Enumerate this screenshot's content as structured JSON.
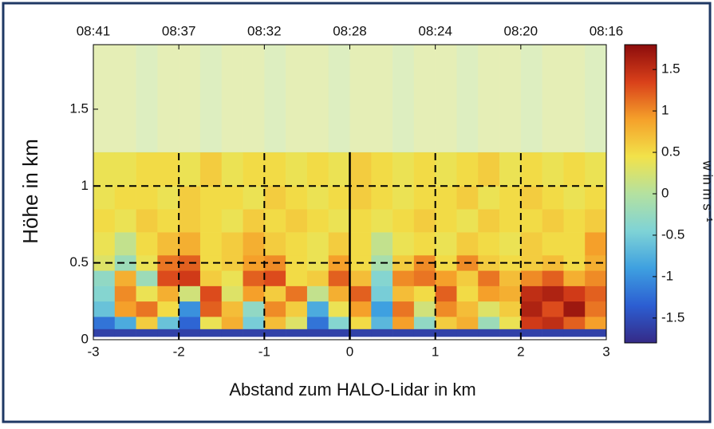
{
  "chart_data": {
    "type": "heatmap",
    "xlabel": "Abstand zum HALO-Lidar in km",
    "ylabel": "Höhe in km",
    "colorbar_label": "w in m s⁻¹",
    "xlim": [
      -3,
      3
    ],
    "xticks": [
      -3,
      -2,
      -1,
      0,
      1,
      2,
      3
    ],
    "ylim": [
      0,
      1.92
    ],
    "yticks": [
      0,
      0.5,
      1,
      1.5
    ],
    "x2ticks": [
      {
        "value": -3,
        "label": "08:41"
      },
      {
        "value": -2,
        "label": "08:37"
      },
      {
        "value": -1,
        "label": "08:32"
      },
      {
        "value": 0,
        "label": "08:28"
      },
      {
        "value": 1,
        "label": "08:24"
      },
      {
        "value": 2,
        "label": "08:20"
      },
      {
        "value": 3,
        "label": "08:16"
      }
    ],
    "clim": [
      -1.8,
      1.8
    ],
    "cticks": [
      -1.5,
      -1,
      -0.5,
      0,
      0.5,
      1,
      1.5
    ],
    "colormap": [
      "#352a87",
      "#2c5ed2",
      "#3ea0e0",
      "#7fd3d6",
      "#b4e1a0",
      "#f2e24a",
      "#f5a02a",
      "#d9401a",
      "#8c0c0c"
    ],
    "x_bins": [
      -3,
      -2.75,
      -2.5,
      -2.25,
      -2,
      -1.75,
      -1.5,
      -1.25,
      -1,
      -0.75,
      -0.5,
      -0.25,
      0,
      0.25,
      0.5,
      0.75,
      1,
      1.25,
      1.5,
      1.75,
      2,
      2.25,
      2.5,
      2.75,
      3
    ],
    "y_bins": [
      0.02,
      0.07,
      0.15,
      0.25,
      0.35,
      0.45,
      0.55,
      0.7,
      0.85,
      1,
      1.22,
      1.92
    ],
    "z": [
      [
        -1.6,
        -1.6,
        -1.6,
        -1.6,
        -1.6,
        -1.6,
        -1.6,
        -1.6,
        -1.6,
        -1.6,
        -1.6,
        -1.6,
        -1.6,
        -1.6,
        -1.6,
        -1.6,
        -1.6,
        -1.6,
        -1.6,
        -1.6,
        -1.6,
        -1.6,
        -1.6,
        -1.6
      ],
      [
        -1.2,
        -0.8,
        0.6,
        -0.6,
        -1.3,
        0.4,
        0.8,
        -0.5,
        0.7,
        0.3,
        -1.2,
        -0.4,
        0.5,
        -0.7,
        0.9,
        -0.3,
        0.6,
        0.8,
        -0.2,
        0.4,
        1.4,
        1.5,
        1.2,
        0.9
      ],
      [
        -0.6,
        0.9,
        1.1,
        0.5,
        -1,
        1.2,
        0.7,
        -0.3,
        1,
        0.6,
        -0.8,
        0.4,
        0.9,
        -0.9,
        1.1,
        0.2,
        1,
        0.7,
        0.3,
        0.6,
        1.6,
        1.3,
        1.7,
        1.1
      ],
      [
        -0.4,
        1,
        0.4,
        0.8,
        0.2,
        1.3,
        0.3,
        0.9,
        0.6,
        1.1,
        0.1,
        0.8,
        1.2,
        -0.5,
        0.7,
        0.5,
        1.2,
        0.5,
        0.9,
        0.8,
        1.5,
        1.6,
        1.4,
        1.2
      ],
      [
        -0.3,
        0.8,
        -0.2,
        1.3,
        1.4,
        0.6,
        0.4,
        1.2,
        1.3,
        0.5,
        0.6,
        1.2,
        0.7,
        -0.4,
        1,
        1.1,
        0.9,
        0.6,
        1.1,
        0.7,
        1,
        1.2,
        0.8,
        1
      ],
      [
        0.3,
        -0.2,
        0.4,
        1.1,
        1.2,
        0.5,
        0.6,
        0.9,
        1,
        0.5,
        0.4,
        0.9,
        0.5,
        -0.1,
        0.6,
        1,
        0.5,
        1,
        0.6,
        0.5,
        0.6,
        0.7,
        0.5,
        0.8
      ],
      [
        0.4,
        0.1,
        0.5,
        0.7,
        0.8,
        0.5,
        0.6,
        0.8,
        0.6,
        0.5,
        0.4,
        0.6,
        0.5,
        0.1,
        0.4,
        0.5,
        0.4,
        0.6,
        0.5,
        0.4,
        0.6,
        0.5,
        0.5,
        0.9
      ],
      [
        0.5,
        0.4,
        0.6,
        0.5,
        0.6,
        0.5,
        0.4,
        0.6,
        0.5,
        0.6,
        0.5,
        0.4,
        0.5,
        0.4,
        0.5,
        0.6,
        0.5,
        0.4,
        0.6,
        0.5,
        0.5,
        0.6,
        0.5,
        0.6
      ],
      [
        0.4,
        0.5,
        0.5,
        0.4,
        0.6,
        0.5,
        0.5,
        0.4,
        0.6,
        0.5,
        0.4,
        0.5,
        0.6,
        0.5,
        0.4,
        0.5,
        0.5,
        0.6,
        0.4,
        0.5,
        0.6,
        0.5,
        0.4,
        0.5
      ],
      [
        0.4,
        0.4,
        0.5,
        0.5,
        0.4,
        0.6,
        0.4,
        0.5,
        0.5,
        0.4,
        0.5,
        0.4,
        0.6,
        0.5,
        0.4,
        0.5,
        0.4,
        0.5,
        0.6,
        0.4,
        0.5,
        0.4,
        0.5,
        0.4
      ],
      [
        0.2,
        0.2,
        0.1,
        0.2,
        0.2,
        0.1,
        0.2,
        0.2,
        0.1,
        0.2,
        0.2,
        0.1,
        0.2,
        0.2,
        0.1,
        0.2,
        0.2,
        0.1,
        0.2,
        0.2,
        0.1,
        0.2,
        0.2,
        0.1
      ]
    ],
    "fade_from": 1.22,
    "dashed_vlines": [
      -2,
      -1,
      1,
      2
    ],
    "solid_vline": 0,
    "dashed_hlines": [
      0.5,
      1
    ]
  }
}
